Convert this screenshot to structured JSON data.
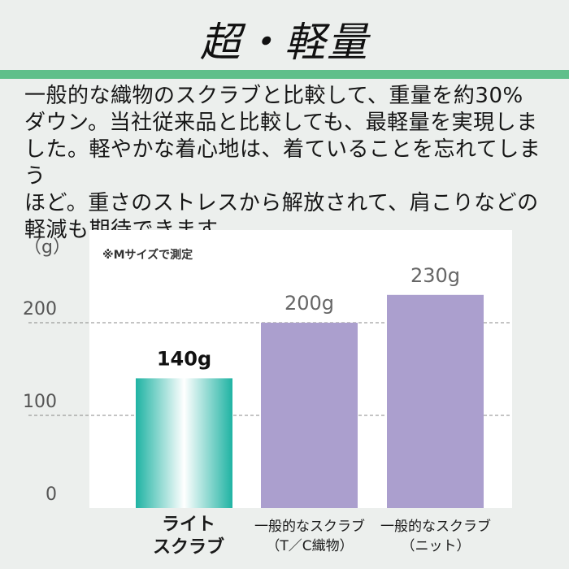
{
  "title": "超・軽量",
  "description": "一般的な織物のスクラブと比較して、重量を約30%\nダウン。当社従来品と比較しても、最軽量を実現しま\nした。軽やかな着心地は、着ていることを忘れてしまう\nほど。重さのストレスから解放されて、肩こりなどの\n軽減も期待できます。",
  "colors": {
    "accent_rule": "#5fbf8a",
    "competitor_bar": "#ab9fce",
    "highlight_bar_edge": "#1fb3a3",
    "highlight_bar_center": "#ffffff",
    "background": "#ecefed"
  },
  "chart_data": {
    "type": "bar",
    "unit_label": "（g）",
    "note": "※Mサイズで測定",
    "categories": [
      "ライト\nスクラブ",
      "一般的なスクラブ\n（T／C織物）",
      "一般的なスクラブ\n（ニット）"
    ],
    "values": [
      140,
      200,
      230
    ],
    "value_labels": [
      "140g",
      "200g",
      "230g"
    ],
    "highlight_index": 0,
    "yticks": [
      0,
      100,
      200
    ],
    "ylim": [
      0,
      300
    ],
    "grid": "dashed horizontal at 100 and 200",
    "legend": "none"
  }
}
